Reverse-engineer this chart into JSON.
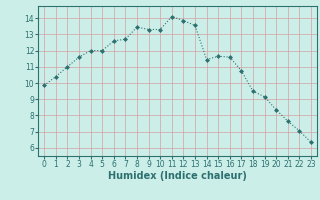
{
  "x": [
    0,
    1,
    2,
    3,
    4,
    5,
    6,
    7,
    8,
    9,
    10,
    11,
    12,
    13,
    14,
    15,
    16,
    17,
    18,
    19,
    20,
    21,
    22,
    23
  ],
  "y": [
    9.85,
    10.4,
    11.0,
    11.6,
    12.0,
    12.0,
    12.6,
    12.7,
    13.45,
    13.3,
    13.3,
    14.1,
    13.85,
    13.55,
    11.45,
    11.65,
    11.6,
    10.75,
    9.5,
    9.15,
    8.35,
    7.65,
    7.05,
    6.35
  ],
  "line_color": "#2d7070",
  "marker": "D",
  "marker_size": 2.0,
  "bg_color": "#cceee8",
  "grid_color": "#b0c8c0",
  "xlabel": "Humidex (Indice chaleur)",
  "xlim": [
    -0.5,
    23.5
  ],
  "ylim": [
    5.5,
    14.75
  ],
  "yticks": [
    6,
    7,
    8,
    9,
    10,
    11,
    12,
    13,
    14
  ],
  "xticks": [
    0,
    1,
    2,
    3,
    4,
    5,
    6,
    7,
    8,
    9,
    10,
    11,
    12,
    13,
    14,
    15,
    16,
    17,
    18,
    19,
    20,
    21,
    22,
    23
  ],
  "tick_fontsize": 5.5,
  "xlabel_fontsize": 7.0,
  "line_width": 0.8
}
